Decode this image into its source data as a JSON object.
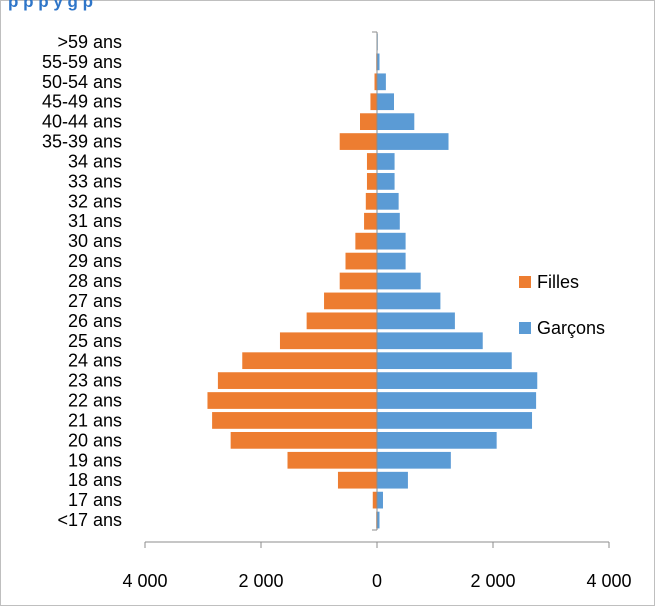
{
  "chart_data": {
    "type": "bar",
    "orientation": "horizontal",
    "title": "…population by age and sex…",
    "title_visible_fragment": "p p p y g p",
    "categories": [
      "<17 ans",
      "17 ans",
      "18 ans",
      "19 ans",
      "20 ans",
      "21 ans",
      "22 ans",
      "23 ans",
      "24 ans",
      "25 ans",
      "26 ans",
      "27 ans",
      "28 ans",
      "29 ans",
      "30 ans",
      "31 ans",
      "32 ans",
      "33 ans",
      "34 ans",
      "35-39 ans",
      "40-44 ans",
      "45-49 ans",
      "50-54 ans",
      "55-59 ans",
      ">59 ans"
    ],
    "series": [
      {
        "name": "Filles",
        "color": "#ed7d31",
        "values": [
          20,
          80,
          680,
          1550,
          2530,
          2850,
          2930,
          2750,
          2330,
          1680,
          1220,
          920,
          650,
          550,
          380,
          230,
          200,
          180,
          180,
          650,
          300,
          120,
          50,
          20,
          10
        ]
      },
      {
        "name": "Garçons",
        "color": "#5b9bd5",
        "values": [
          50,
          110,
          540,
          1280,
          2070,
          2680,
          2750,
          2770,
          2330,
          1830,
          1350,
          1100,
          760,
          500,
          500,
          400,
          380,
          310,
          310,
          1240,
          650,
          300,
          160,
          50,
          20
        ]
      }
    ],
    "xlim": [
      -4000,
      4000
    ],
    "xticks": [
      -4000,
      -2000,
      0,
      2000,
      4000
    ],
    "xtick_labels": [
      "4 000",
      "2 000",
      "0",
      "2 000",
      "4 000"
    ],
    "legend_position": "right",
    "grid": false
  }
}
